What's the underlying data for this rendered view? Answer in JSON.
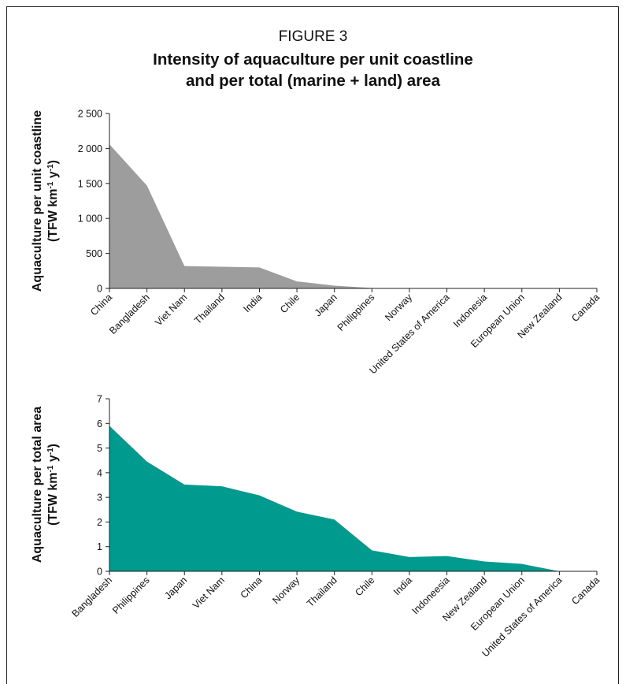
{
  "figure": {
    "label": "FIGURE 3",
    "title_line1": "Intensity of aquaculture per unit coastline",
    "title_line2": "and per total (marine + land) area"
  },
  "colors": {
    "chart1_fill": "#9d9d9e",
    "chart2_fill": "#009a8f",
    "axis": "#222222"
  },
  "chart_data": [
    {
      "type": "area",
      "ylabel_line1": "Aquaculture per unit coastline",
      "ylabel_line2": "(TFW km-1 y-1)",
      "categories": [
        "China",
        "Bangladesh",
        "Viet Nam",
        "Thailand",
        "India",
        "Chile",
        "Japan",
        "Philippines",
        "Norway",
        "United States of America",
        "Indonesia",
        "European Union",
        "New Zealand",
        "Canada"
      ],
      "values": [
        2060,
        1470,
        320,
        310,
        300,
        100,
        40,
        5,
        3,
        2,
        2,
        1,
        1,
        1
      ],
      "ylim": [
        0,
        2500
      ],
      "yticks": [
        0,
        500,
        1000,
        1500,
        2000,
        2500
      ],
      "ytick_labels": [
        "0",
        "500",
        "1 000",
        "1 500",
        "2 000",
        "2 500"
      ],
      "grid": false
    },
    {
      "type": "area",
      "ylabel_line1": "Aquaculture per total area",
      "ylabel_line2": "(TFW km-1 y-1)",
      "categories": [
        "Bangladesh",
        "Philippines",
        "Japan",
        "Viet Nam",
        "China",
        "Norway",
        "Thailand",
        "Chile",
        "India",
        "Indoneesia",
        "New Zealand",
        "European Union",
        "United States of America",
        "Canada"
      ],
      "values": [
        5.9,
        4.45,
        3.52,
        3.45,
        3.08,
        2.42,
        2.1,
        0.85,
        0.58,
        0.62,
        0.4,
        0.3,
        0.0,
        0.0
      ],
      "ylim": [
        0,
        7
      ],
      "yticks": [
        0,
        1,
        2,
        3,
        4,
        5,
        6,
        7
      ],
      "ytick_labels": [
        "0",
        "1",
        "2",
        "3",
        "4",
        "5",
        "6",
        "7"
      ],
      "grid": false
    }
  ]
}
